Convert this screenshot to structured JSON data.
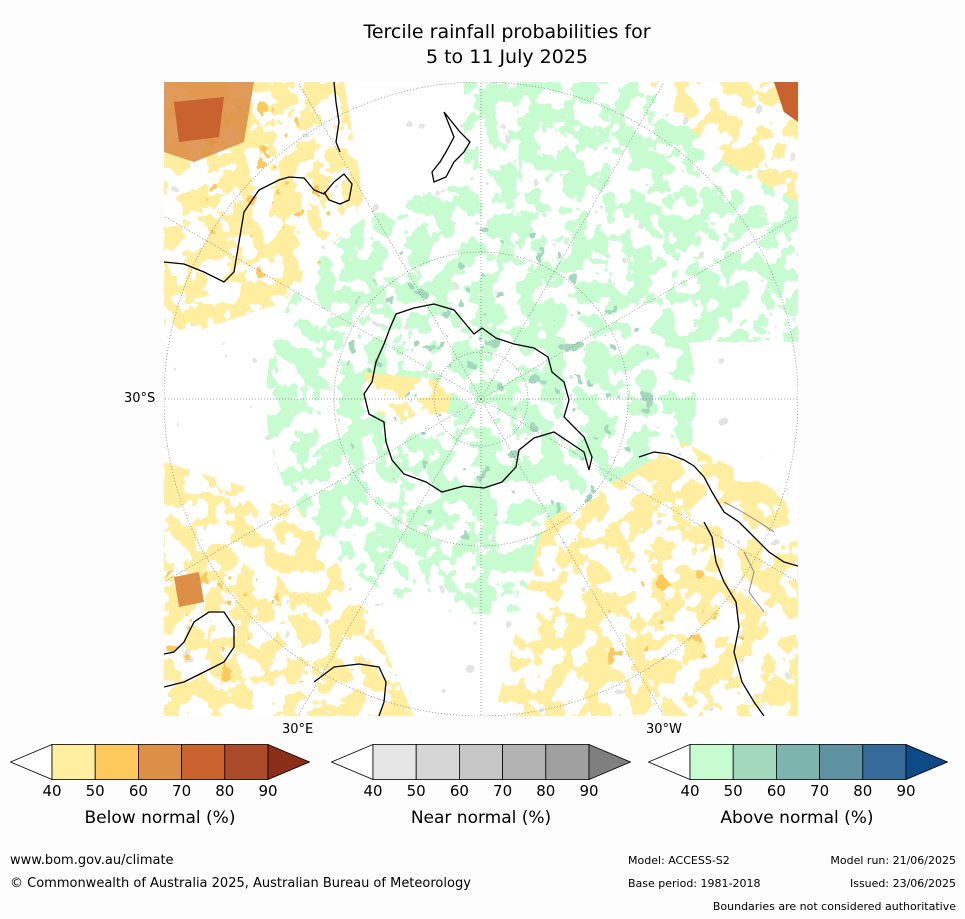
{
  "title": {
    "line1": "Tercile rainfall probabilities for",
    "line2": "5 to 11 July 2025"
  },
  "map": {
    "projection": "south-polar-stereographic",
    "lat_label": "30°S",
    "lon_labels": {
      "east": "30°E",
      "west": "30°W"
    }
  },
  "legends": [
    {
      "name": "Below normal (%)",
      "ticks": [
        "40",
        "50",
        "60",
        "70",
        "80",
        "90"
      ],
      "colors": [
        "#ffffff",
        "#ffeda0",
        "#fec95c",
        "#de8f47",
        "#c8622f",
        "#ab4a28",
        "#8a2e1a"
      ]
    },
    {
      "name": "Near normal (%)",
      "ticks": [
        "40",
        "50",
        "60",
        "70",
        "80",
        "90"
      ],
      "colors": [
        "#ffffff",
        "#e6e6e6",
        "#d6d6d6",
        "#c6c6c6",
        "#b3b3b3",
        "#a0a0a0",
        "#7f7f7f"
      ]
    },
    {
      "name": "Above normal (%)",
      "ticks": [
        "40",
        "50",
        "60",
        "70",
        "80",
        "90"
      ],
      "colors": [
        "#ffffff",
        "#c7fcd0",
        "#a3d8bd",
        "#7db4ad",
        "#5e92a0",
        "#356a9b",
        "#0d4a86"
      ]
    }
  ],
  "footer": {
    "website": "www.bom.gov.au/climate",
    "copyright": "© Commonwealth of Australia 2025, Australian Bureau of Meteorology",
    "model": "Model: ACCESS-S2",
    "base_period": "Base period: 1981-2018",
    "model_run": "Model run: 21/06/2025",
    "issued": "Issued: 23/06/2025",
    "disclaimer": "Boundaries are not considered authoritative"
  }
}
